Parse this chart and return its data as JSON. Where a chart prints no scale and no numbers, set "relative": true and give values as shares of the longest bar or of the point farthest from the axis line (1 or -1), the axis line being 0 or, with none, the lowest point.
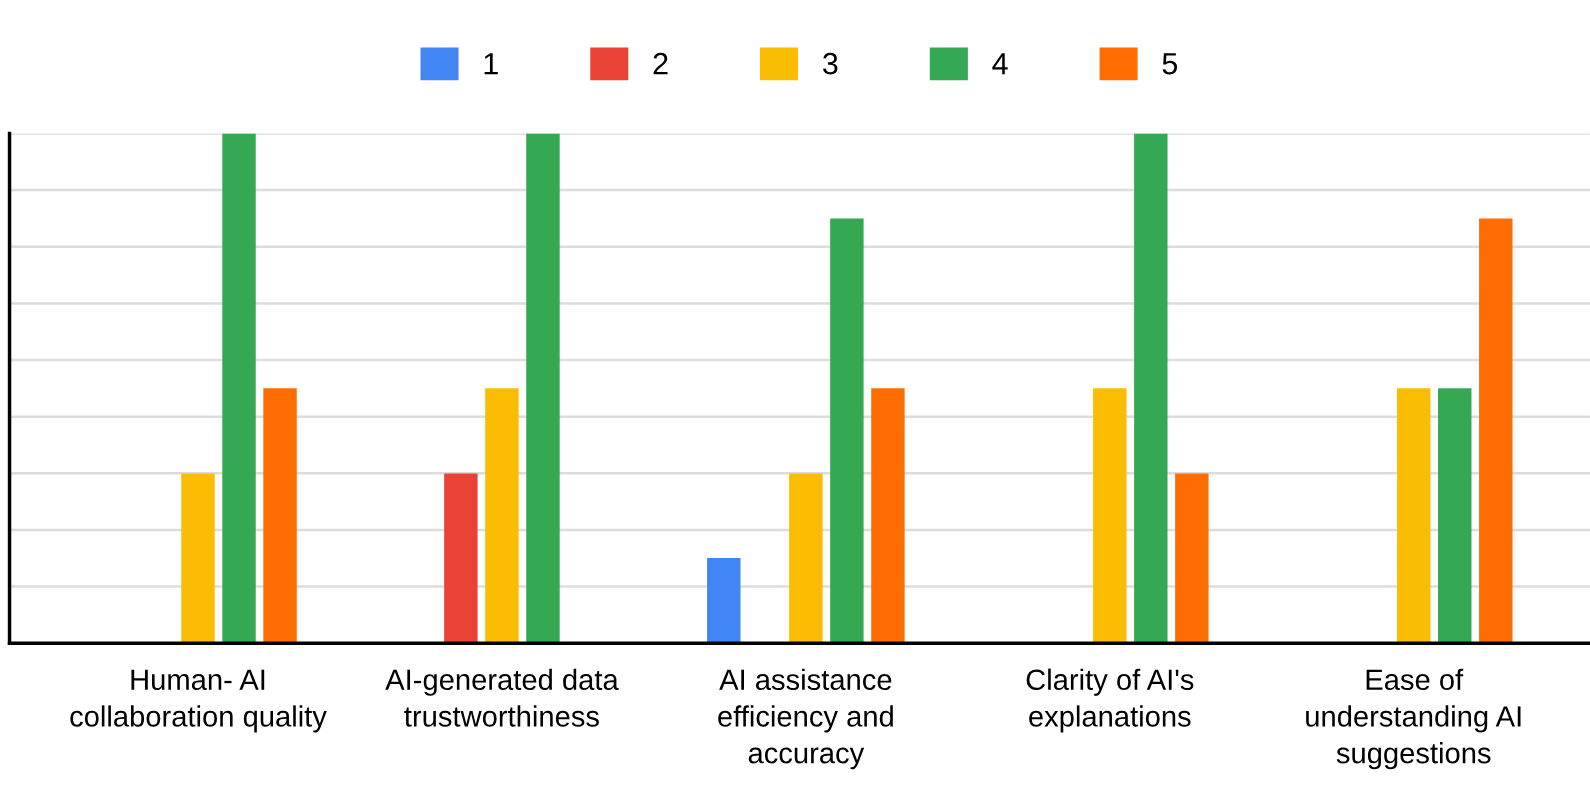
{
  "chart_data": {
    "type": "bar",
    "relative": true,
    "grid": true,
    "legend": "top",
    "categories": [
      "Human- AI collaboration quality",
      "AI-generated data trustworthiness",
      "AI assistance efficiency and accuracy",
      "Clarity of AI's explanations",
      "Ease of understanding AI suggestions"
    ],
    "series": [
      {
        "name": "1",
        "color": "#4285f4",
        "values": [
          0,
          0,
          0.167,
          0,
          0
        ]
      },
      {
        "name": "2",
        "color": "#ea4335",
        "values": [
          0,
          0.333,
          0,
          0,
          0
        ]
      },
      {
        "name": "3",
        "color": "#fbbc04",
        "values": [
          0.333,
          0.5,
          0.333,
          0.5,
          0.5
        ]
      },
      {
        "name": "4",
        "color": "#34a853",
        "values": [
          1,
          1,
          0.833,
          1,
          0.5
        ]
      },
      {
        "name": "5",
        "color": "#ff6d01",
        "values": [
          0.5,
          0,
          0.5,
          0.333,
          0.833
        ]
      }
    ]
  }
}
